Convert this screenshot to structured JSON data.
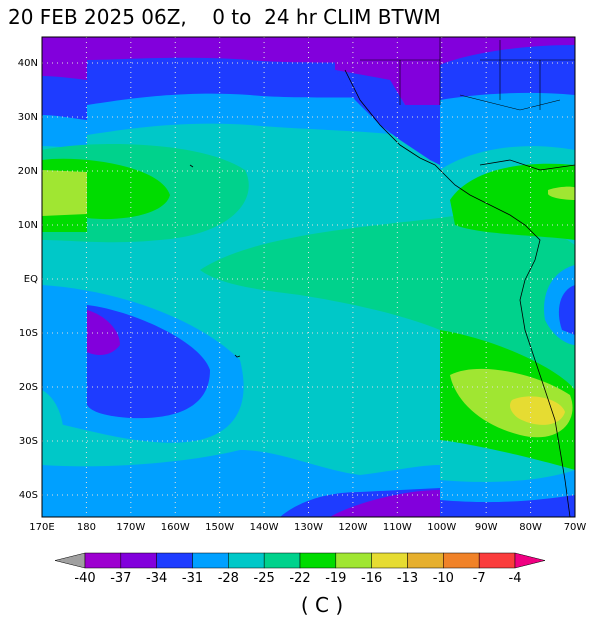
{
  "title": "20 FEB 2025 06Z,    0 to  24 hr CLIM BTWM",
  "lat_labels": [
    "40N",
    "30N",
    "20N",
    "10N",
    "EQ",
    "10S",
    "20S",
    "30S",
    "40S"
  ],
  "lon_labels": [
    "170E",
    "180",
    "170W",
    "160W",
    "150W",
    "140W",
    "130W",
    "120W",
    "110W",
    "100W",
    "90W",
    "80W",
    "70W"
  ],
  "colorbar": {
    "levels": [
      -40,
      -37,
      -34,
      -31,
      -28,
      -25,
      -22,
      -19,
      -16,
      -13,
      -10,
      -7,
      -4
    ],
    "colors": [
      "#9d00d0",
      "#8200dc",
      "#1e3cff",
      "#00a0ff",
      "#00c8c8",
      "#00d28c",
      "#00dc00",
      "#a0e632",
      "#e6dc32",
      "#e6af2d",
      "#f08228",
      "#fa3c3c"
    ],
    "under_color": "#a0a0a0",
    "over_color": "#f00082"
  },
  "units": "( C )"
}
